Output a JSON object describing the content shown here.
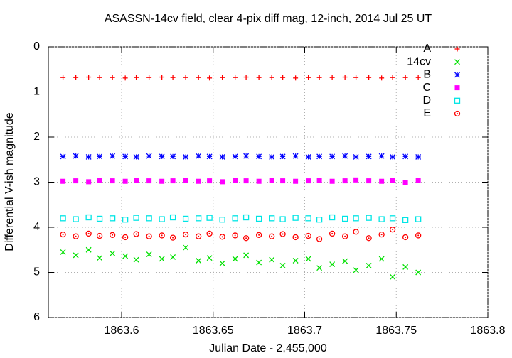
{
  "chart_data": {
    "type": "scatter",
    "title": "ASASSN-14cv field, clear 4-pix diff mag, 12-inch, 2014 Jul 25 UT",
    "x_label": "Julian Date - 2,455,000",
    "y_label": "Differential V-ish magnitude",
    "xlim": [
      1863.56,
      1863.8
    ],
    "ylim": [
      6,
      0
    ],
    "xticks": [
      1863.6,
      1863.65,
      1863.7,
      1863.75,
      1863.8
    ],
    "yticks": [
      0,
      1,
      2,
      3,
      4,
      5,
      6
    ],
    "grid": true,
    "legend": "top-right",
    "x": [
      1863.568,
      1863.575,
      1863.582,
      1863.588,
      1863.595,
      1863.602,
      1863.608,
      1863.615,
      1863.622,
      1863.628,
      1863.635,
      1863.642,
      1863.648,
      1863.655,
      1863.662,
      1863.668,
      1863.675,
      1863.682,
      1863.688,
      1863.695,
      1863.702,
      1863.708,
      1863.715,
      1863.722,
      1863.728,
      1863.735,
      1863.742,
      1863.748,
      1863.755,
      1863.762
    ],
    "series": [
      {
        "name": "A",
        "color": "#ff0000",
        "marker": "plus",
        "values": [
          0.68,
          0.68,
          0.67,
          0.68,
          0.68,
          0.69,
          0.68,
          0.68,
          0.67,
          0.68,
          0.68,
          0.68,
          0.69,
          0.68,
          0.68,
          0.67,
          0.68,
          0.68,
          0.68,
          0.69,
          0.68,
          0.68,
          0.68,
          0.67,
          0.68,
          0.68,
          0.69,
          0.68,
          0.68,
          0.68
        ]
      },
      {
        "name": "14cv",
        "color": "#00e000",
        "marker": "cross",
        "values": [
          4.55,
          4.62,
          4.5,
          4.68,
          4.58,
          4.64,
          4.72,
          4.6,
          4.7,
          4.66,
          4.45,
          4.74,
          4.68,
          4.8,
          4.7,
          4.62,
          4.78,
          4.72,
          4.85,
          4.74,
          4.7,
          4.9,
          4.82,
          4.75,
          4.95,
          4.85,
          4.7,
          5.1,
          4.88,
          5.0
        ]
      },
      {
        "name": "B",
        "color": "#0000ff",
        "marker": "star",
        "values": [
          2.43,
          2.42,
          2.44,
          2.43,
          2.42,
          2.43,
          2.44,
          2.42,
          2.43,
          2.43,
          2.44,
          2.42,
          2.43,
          2.44,
          2.43,
          2.42,
          2.43,
          2.44,
          2.43,
          2.42,
          2.44,
          2.43,
          2.43,
          2.42,
          2.44,
          2.43,
          2.42,
          2.44,
          2.43,
          2.44
        ]
      },
      {
        "name": "C",
        "color": "#ff00ff",
        "marker": "square",
        "values": [
          2.98,
          2.97,
          2.99,
          2.96,
          2.97,
          2.98,
          2.96,
          2.97,
          2.98,
          2.97,
          2.96,
          2.98,
          2.97,
          2.99,
          2.96,
          2.97,
          2.98,
          2.96,
          2.97,
          2.98,
          2.97,
          2.96,
          2.98,
          2.97,
          2.95,
          2.97,
          2.98,
          2.96,
          3.0,
          2.96
        ]
      },
      {
        "name": "D",
        "color": "#00e5e5",
        "marker": "open-square",
        "values": [
          3.8,
          3.82,
          3.78,
          3.81,
          3.8,
          3.83,
          3.79,
          3.8,
          3.82,
          3.78,
          3.81,
          3.8,
          3.79,
          3.83,
          3.8,
          3.78,
          3.81,
          3.8,
          3.82,
          3.79,
          3.8,
          3.83,
          3.78,
          3.81,
          3.8,
          3.79,
          3.82,
          3.8,
          3.84,
          3.82
        ]
      },
      {
        "name": "E",
        "color": "#ff0000",
        "marker": "open-circle",
        "values": [
          4.16,
          4.2,
          4.14,
          4.19,
          4.17,
          4.22,
          4.15,
          4.2,
          4.18,
          4.23,
          4.16,
          4.2,
          4.14,
          4.21,
          4.18,
          4.24,
          4.17,
          4.2,
          4.15,
          4.22,
          4.19,
          4.26,
          4.14,
          4.2,
          4.1,
          4.24,
          4.16,
          4.05,
          4.22,
          4.18
        ]
      }
    ]
  }
}
